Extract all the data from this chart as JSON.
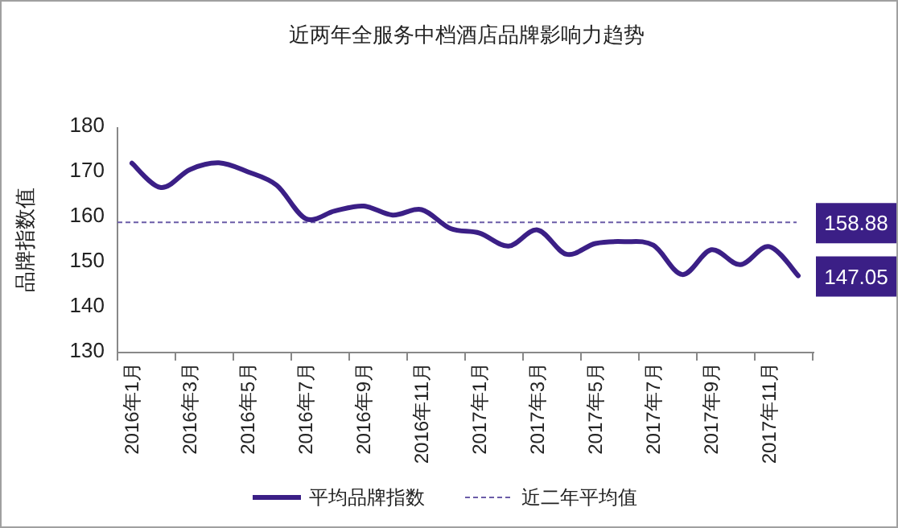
{
  "chart_data": {
    "type": "line",
    "title": "近两年全服务中档酒店品牌影响力趋势",
    "ylabel": "品牌指数值",
    "categories": [
      "2016年1月",
      null,
      "2016年3月",
      null,
      "2016年5月",
      null,
      "2016年7月",
      null,
      "2016年9月",
      null,
      "2016年11月",
      null,
      "2017年1月",
      null,
      "2017年3月",
      null,
      "2017年5月",
      null,
      "2017年7月",
      null,
      "2017年9月",
      null,
      "2017年11月",
      null
    ],
    "series": [
      {
        "name": "平均品牌指数",
        "color": "#3b1f86",
        "values": [
          172.0,
          166.6,
          170.6,
          172.1,
          170.1,
          167.1,
          159.7,
          161.4,
          162.5,
          160.5,
          161.7,
          157.5,
          156.5,
          153.6,
          157.2,
          151.8,
          154.2,
          154.6,
          153.8,
          147.3,
          152.8,
          149.5,
          153.5,
          147.05
        ],
        "value_labels": [
          null,
          null,
          null,
          null,
          null,
          null,
          null,
          null,
          null,
          null,
          null,
          null,
          null,
          null,
          null,
          null,
          null,
          null,
          null,
          null,
          null,
          null,
          null,
          "147.05"
        ]
      }
    ],
    "ref_lines": [
      {
        "axis": "y",
        "value": 158.88,
        "label": "近二年平均值",
        "color": "#6b5ca8",
        "line_style": "dashed"
      }
    ],
    "annotations": [
      "158.88"
    ],
    "ylim": [
      130,
      180
    ],
    "yticks": [
      130,
      140,
      150,
      160,
      170,
      180
    ],
    "grid": false,
    "legend": "bottom",
    "marker": "none",
    "line_style": "solid"
  }
}
